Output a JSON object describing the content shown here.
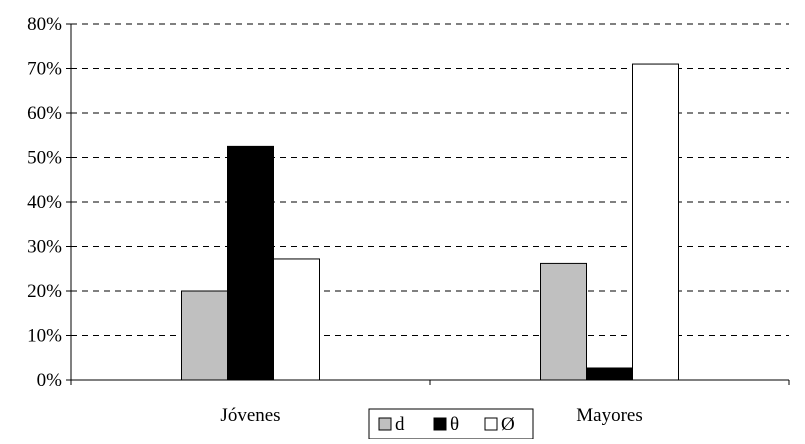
{
  "chart_data": {
    "type": "bar",
    "categories": [
      "Jóvenes",
      "Mayores"
    ],
    "series": [
      {
        "name": "d",
        "values": [
          20,
          26.2
        ],
        "color": "#c0c0c0"
      },
      {
        "name": "θ",
        "values": [
          52.5,
          2.7
        ],
        "color": "#000000"
      },
      {
        "name": "Ø",
        "values": [
          27.2,
          71.0
        ],
        "color": "#ffffff"
      }
    ],
    "ylim": [
      0,
      80
    ],
    "yticks": [
      0,
      10,
      20,
      30,
      40,
      50,
      60,
      70,
      80
    ],
    "ytick_labels": [
      "0%",
      "10%",
      "20%",
      "30%",
      "40%",
      "50%",
      "60%",
      "70%",
      "80%"
    ],
    "grid": true,
    "grid_style": "dashed",
    "legend_position": "bottom-center",
    "title": "",
    "xlabel": "",
    "ylabel": ""
  }
}
